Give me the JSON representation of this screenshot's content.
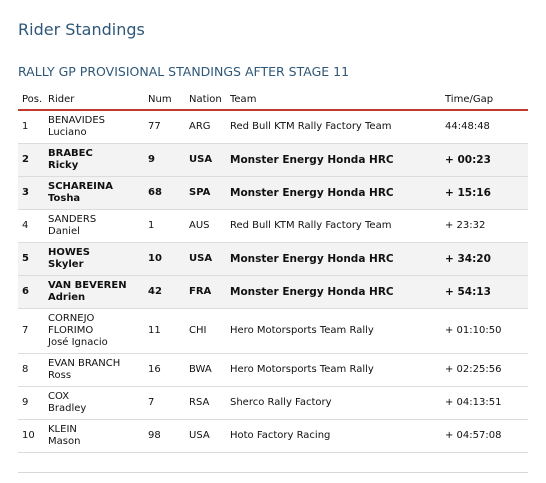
{
  "page": {
    "title": "Rider Standings",
    "table_heading": "RALLY GP PROVISIONAL STANDINGS AFTER STAGE 11"
  },
  "table": {
    "headers": {
      "pos": "Pos.",
      "rider": "Rider",
      "num": "Num",
      "nation": "Nation",
      "team": "Team",
      "gap": "Time/Gap"
    },
    "rows": [
      {
        "pos": "1",
        "rider_lines": [
          "BENAVIDES",
          "Luciano"
        ],
        "num": "77",
        "nation": "ARG",
        "team": "Red Bull KTM Rally Factory Team",
        "gap": "44:48:48",
        "bold": false
      },
      {
        "pos": "2",
        "rider_lines": [
          "BRABEC",
          "Ricky"
        ],
        "num": "9",
        "nation": "USA",
        "team": "Monster Energy Honda HRC",
        "gap": "+ 00:23",
        "bold": true
      },
      {
        "pos": "3",
        "rider_lines": [
          "SCHAREINA",
          "Tosha"
        ],
        "num": "68",
        "nation": "SPA",
        "team": "Monster Energy Honda HRC",
        "gap": "+ 15:16",
        "bold": true
      },
      {
        "pos": "4",
        "rider_lines": [
          "SANDERS",
          "Daniel"
        ],
        "num": "1",
        "nation": "AUS",
        "team": "Red Bull KTM Rally Factory Team",
        "gap": "+ 23:32",
        "bold": false
      },
      {
        "pos": "5",
        "rider_lines": [
          "HOWES",
          "Skyler"
        ],
        "num": "10",
        "nation": "USA",
        "team": "Monster Energy Honda HRC",
        "gap": "+ 34:20",
        "bold": true
      },
      {
        "pos": "6",
        "rider_lines": [
          "VAN BEVEREN",
          "Adrien"
        ],
        "num": "42",
        "nation": "FRA",
        "team": "Monster Energy Honda HRC",
        "gap": "+ 54:13",
        "bold": true
      },
      {
        "pos": "7",
        "rider_lines": [
          "CORNEJO",
          "FLORIMO",
          "José Ignacio"
        ],
        "num": "11",
        "nation": "CHI",
        "team": "Hero Motorsports Team Rally",
        "gap": "+ 01:10:50",
        "bold": false
      },
      {
        "pos": "8",
        "rider_lines": [
          "EVAN BRANCH",
          "Ross"
        ],
        "num": "16",
        "nation": "BWA",
        "team": "Hero Motorsports Team Rally",
        "gap": "+ 02:25:56",
        "bold": false
      },
      {
        "pos": "9",
        "rider_lines": [
          "COX",
          "Bradley"
        ],
        "num": "7",
        "nation": "RSA",
        "team": "Sherco Rally Factory",
        "gap": "+ 04:13:51",
        "bold": false
      },
      {
        "pos": "10",
        "rider_lines": [
          "KLEIN",
          "Mason"
        ],
        "num": "98",
        "nation": "USA",
        "team": "Hoto Factory Racing",
        "gap": "+ 04:57:08",
        "bold": false
      }
    ]
  }
}
